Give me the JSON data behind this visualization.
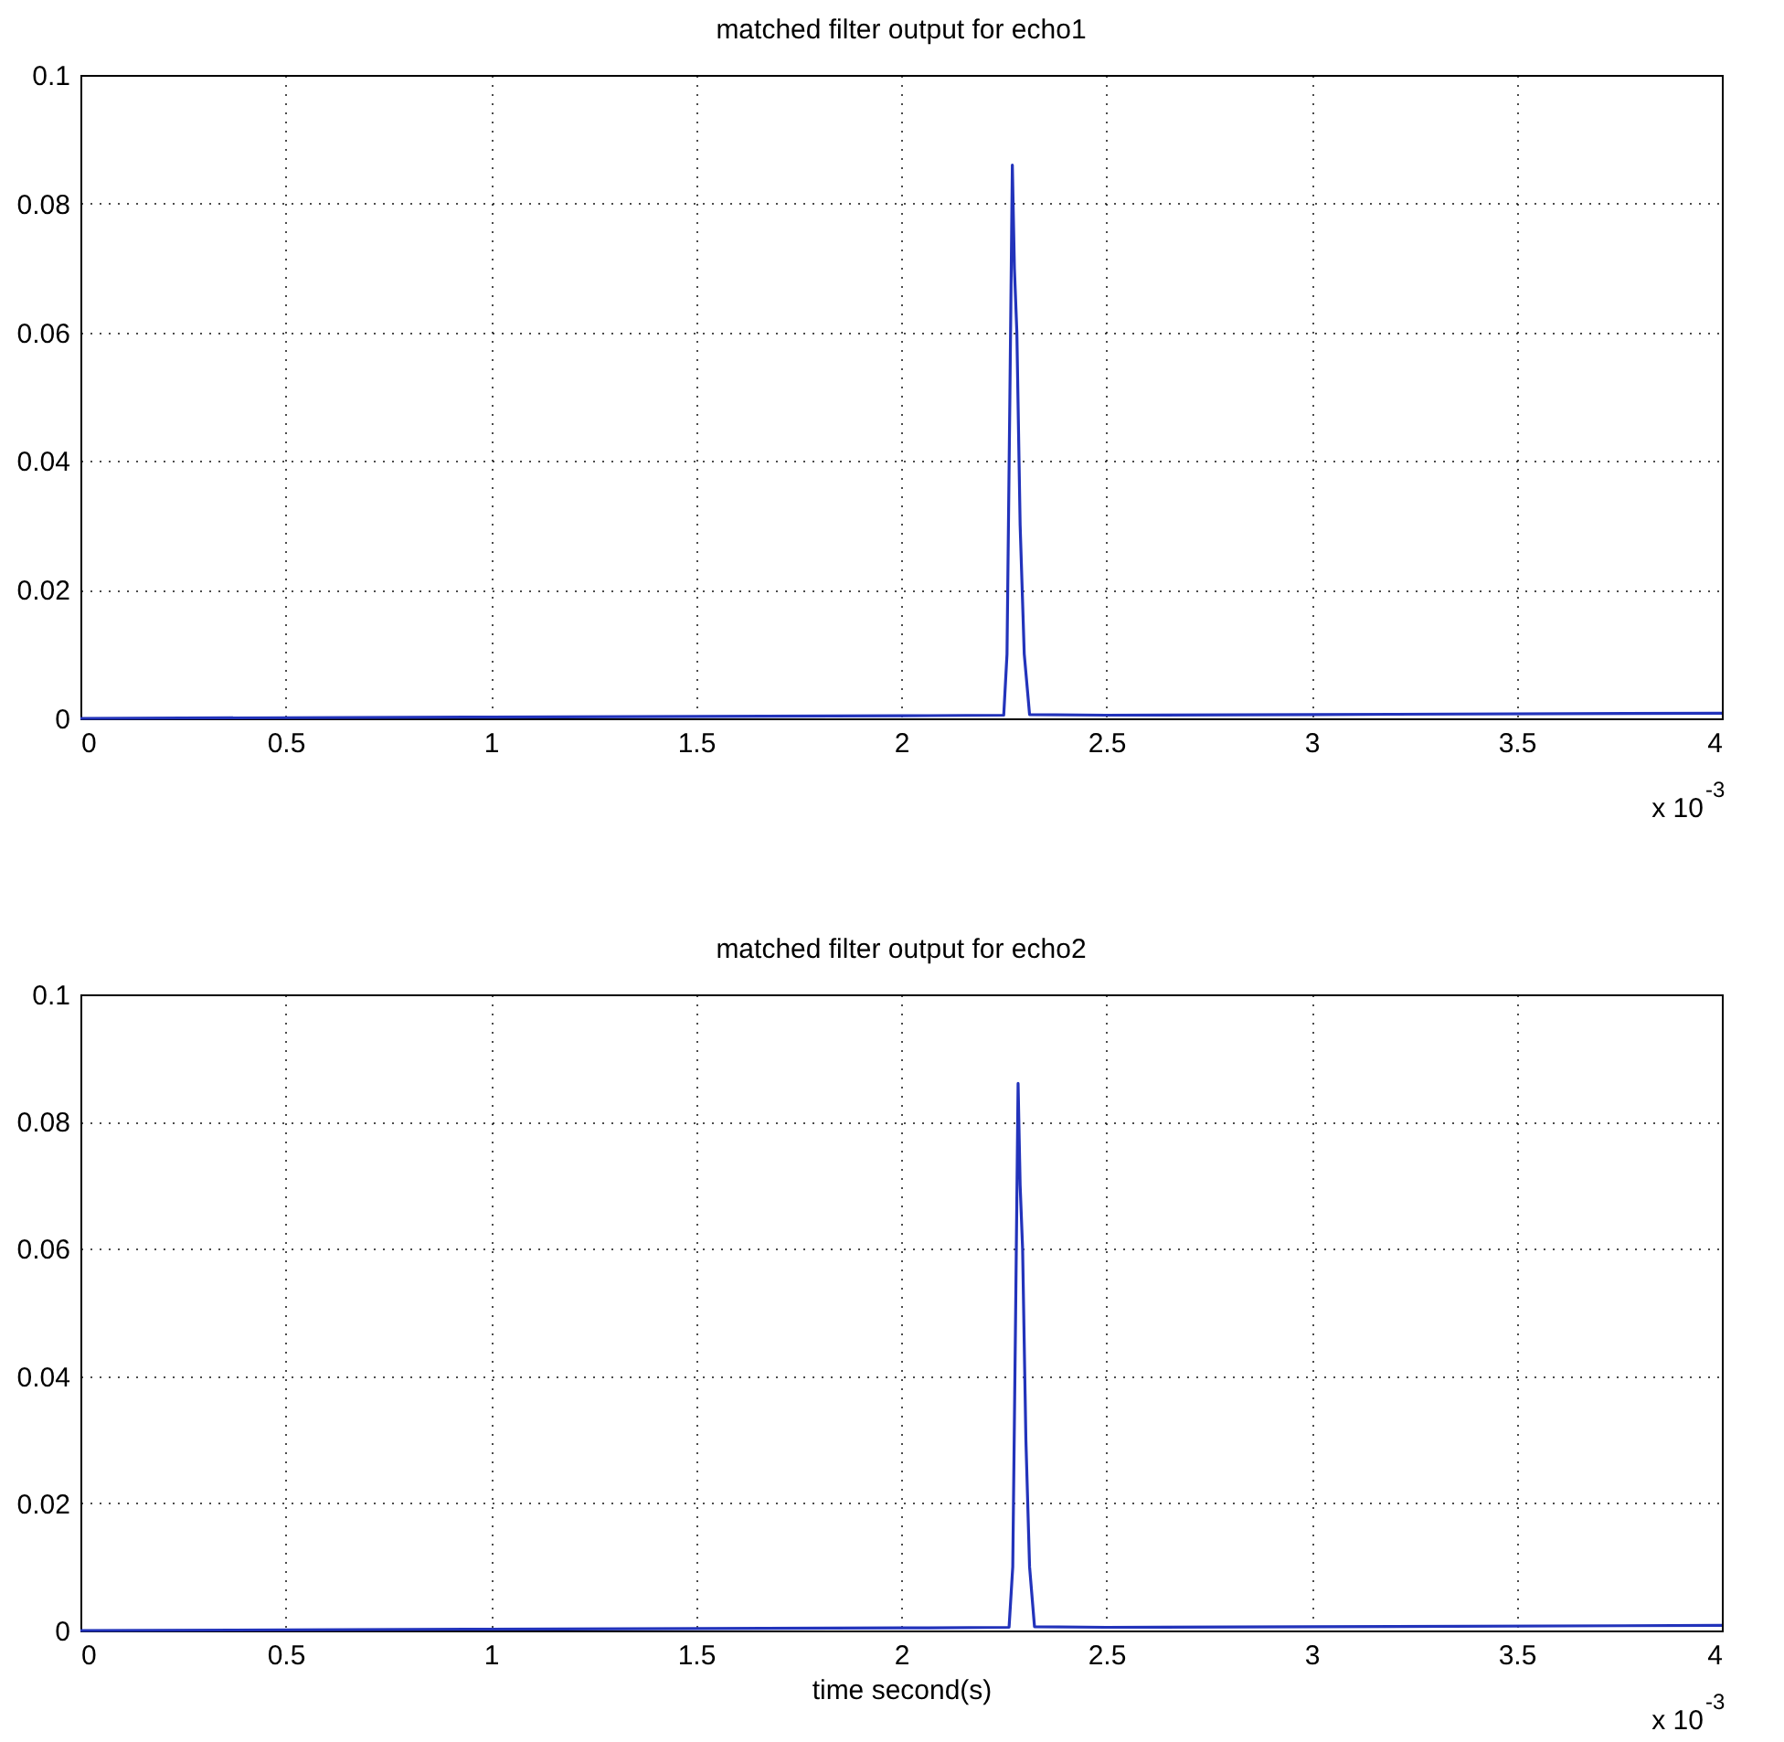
{
  "chart_data": [
    {
      "type": "line",
      "title": "matched filter output for echo1",
      "x": [
        0,
        1,
        2,
        2.25,
        2.258,
        2.265,
        2.271,
        2.276,
        2.282,
        2.29,
        2.3,
        2.313,
        2.5,
        3,
        4
      ],
      "series": [
        {
          "color": "#2233bb",
          "values": [
            0,
            0.0002,
            0.0004,
            0.0005,
            0.01,
            0.05,
            0.086,
            0.07,
            0.06,
            0.03,
            0.01,
            0.0006,
            0.0005,
            0.0006,
            0.0008
          ]
        }
      ],
      "xlim": [
        0,
        4
      ],
      "xticks": [
        0,
        0.5,
        1,
        1.5,
        2,
        2.5,
        3,
        3.5,
        4
      ],
      "ylim": [
        0,
        0.1
      ],
      "yticks": [
        0,
        0.02,
        0.04,
        0.06,
        0.08,
        0.1
      ],
      "grid": true,
      "line_style": "solid",
      "annotations": [
        "x 10$^{-3}$"
      ]
    },
    {
      "type": "line",
      "title": "matched filter output for echo2",
      "xlabel": "time  second(s)",
      "x": [
        0,
        1,
        2,
        2.263,
        2.272,
        2.279,
        2.285,
        2.29,
        2.296,
        2.304,
        2.313,
        2.325,
        2.5,
        3,
        4
      ],
      "series": [
        {
          "color": "#2233bb",
          "values": [
            0,
            0.0002,
            0.0004,
            0.0005,
            0.01,
            0.05,
            0.086,
            0.07,
            0.06,
            0.03,
            0.01,
            0.0006,
            0.0005,
            0.0006,
            0.0008
          ]
        }
      ],
      "xlim": [
        0,
        4
      ],
      "xticks": [
        0,
        0.5,
        1,
        1.5,
        2,
        2.5,
        3,
        3.5,
        4
      ],
      "ylim": [
        0,
        0.1
      ],
      "yticks": [
        0,
        0.02,
        0.04,
        0.06,
        0.08,
        0.1
      ],
      "grid": true,
      "line_style": "solid",
      "annotations": [
        "x 10$^{-3}$"
      ]
    }
  ]
}
